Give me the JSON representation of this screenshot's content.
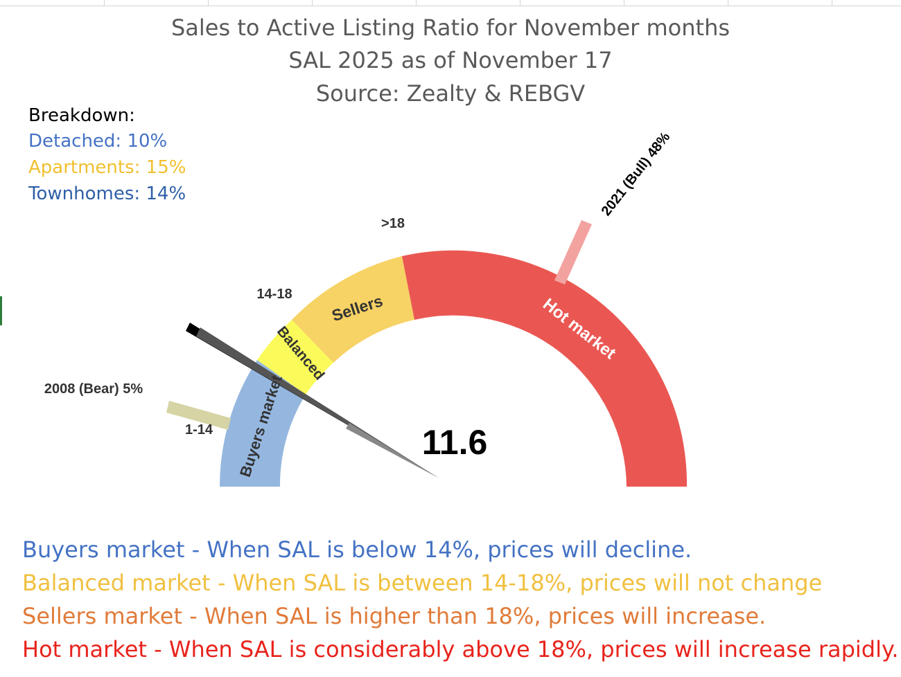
{
  "chart_data": {
    "type": "gauge",
    "title_lines": [
      "Sales to Active Listing Ratio for November months",
      "SAL 2025 as of November 17",
      "Source: Zealty & REBGV"
    ],
    "value": 11.6,
    "value_label": "11.6",
    "zones": [
      {
        "name": "Buyers market",
        "color": "#95b7df"
      },
      {
        "name": "Balanced",
        "color": "#fafa5a"
      },
      {
        "name": "Sellers",
        "color": "#f7d264"
      },
      {
        "name": "Hot market",
        "color": "#ea5752"
      }
    ],
    "threshold_labels": [
      "1-14",
      "14-18",
      ">18"
    ],
    "markers": [
      {
        "label": "2008 (Bear) 5%",
        "color": "#d6d3a4"
      },
      {
        "label": "2021 (Bull) 48%",
        "color": "#f2a3a0"
      }
    ]
  },
  "breakdown": {
    "heading": "Breakdown:",
    "items": [
      {
        "text": "Detached: 10%",
        "color": "#4472c4"
      },
      {
        "text": "Apartments: 15%",
        "color": "#f0c030"
      },
      {
        "text": "Townhomes: 14%",
        "color": "#2e5fa8"
      }
    ]
  },
  "explanations": [
    {
      "text": "Buyers market - When SAL is below 14%, prices will decline.",
      "color": "#4472c4"
    },
    {
      "text": "Balanced market - When SAL is between 14-18%, prices will not change",
      "color": "#f0c040"
    },
    {
      "text": "Sellers market  - When SAL is higher than 18%, prices will increase.",
      "color": "#e07b39"
    },
    {
      "text": "Hot market - When SAL is considerably above 18%, prices will increase rapidly.",
      "color": "#e8231c"
    }
  ]
}
